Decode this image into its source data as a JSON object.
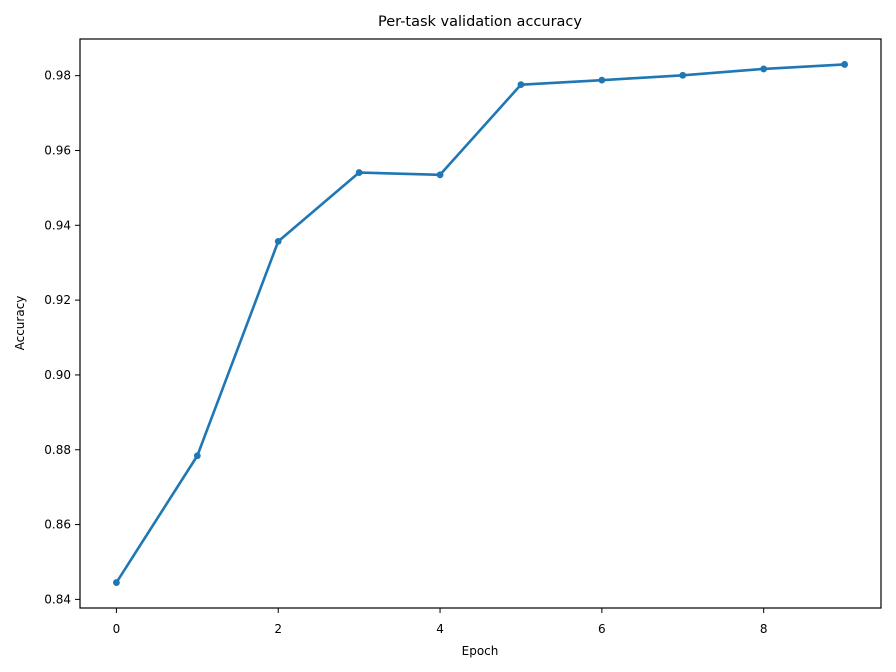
{
  "chart_data": {
    "type": "line",
    "title": "Per-task validation accuracy",
    "xlabel": "Epoch",
    "ylabel": "Accuracy",
    "x": [
      0,
      1,
      2,
      3,
      4,
      5,
      6,
      7,
      8,
      9
    ],
    "series": [
      {
        "values": [
          0.8445,
          0.8784,
          0.9357,
          0.9541,
          0.9535,
          0.9776,
          0.9788,
          0.9801,
          0.9818,
          0.983
        ]
      }
    ],
    "xlim": [
      -0.45,
      9.45
    ],
    "ylim": [
      0.8377,
      0.9898
    ],
    "xticks": [
      0,
      2,
      4,
      6,
      8
    ],
    "yticks": [
      0.84,
      0.86,
      0.88,
      0.9,
      0.92,
      0.94,
      0.96,
      0.98
    ],
    "xtick_labels": [
      "0",
      "2",
      "4",
      "6",
      "8"
    ],
    "ytick_labels": [
      "0.84",
      "0.86",
      "0.88",
      "0.90",
      "0.92",
      "0.94",
      "0.96",
      "0.98"
    ],
    "grid": false,
    "legend": "none",
    "line_color": "#1f77b4",
    "markers": true
  }
}
